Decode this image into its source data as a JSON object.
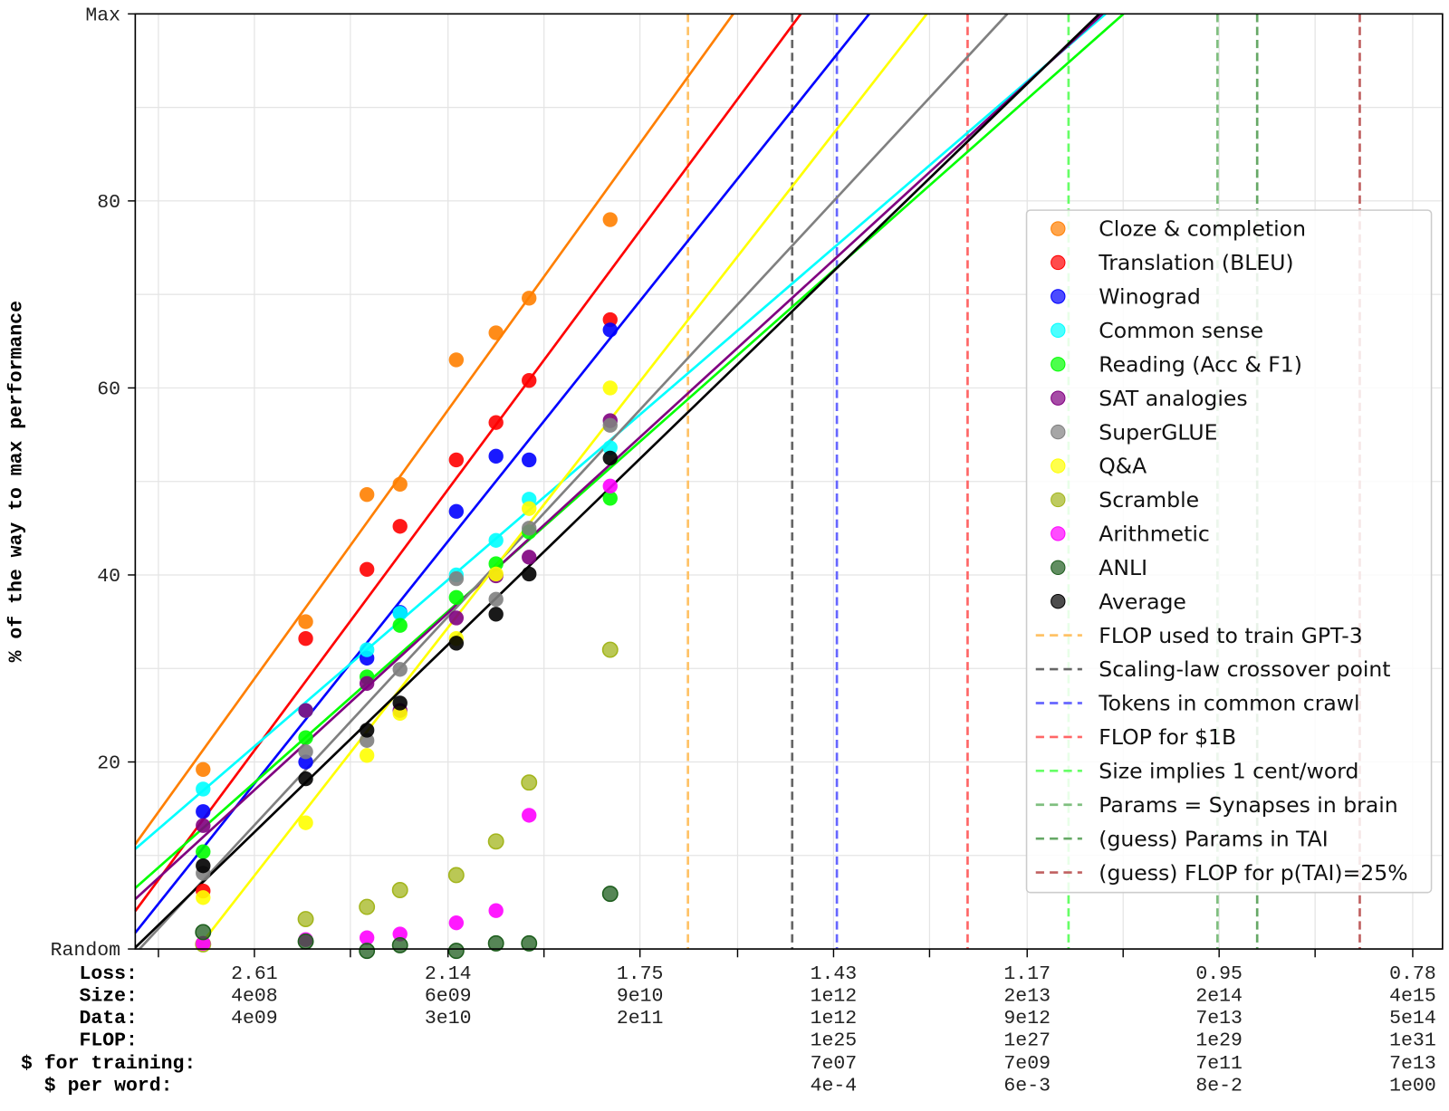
{
  "chart_data": {
    "type": "scatter",
    "ylabel": "% of the way to max performance",
    "ylim": [
      0,
      100
    ],
    "y_ticks": [
      {
        "value": 0,
        "label": "Random"
      },
      {
        "value": 20,
        "label": "20"
      },
      {
        "value": 40,
        "label": "40"
      },
      {
        "value": 60,
        "label": "60"
      },
      {
        "value": 80,
        "label": "80"
      },
      {
        "value": 100,
        "label": "Max"
      }
    ],
    "xlim": [
      7.88,
      15.78
    ],
    "x_minor_ticks": [
      8.02,
      9.18,
      10.35,
      11.52,
      12.68,
      13.85,
      15.01
    ],
    "x_row_labels": [
      "Loss:",
      "Size:",
      "Data:",
      "FLOP:",
      "$ for training:",
      "$ per word:"
    ],
    "x_ticks": [
      {
        "x": 8.6,
        "rows": [
          "2.61",
          "4e08",
          "4e09",
          "",
          "",
          ""
        ]
      },
      {
        "x": 9.77,
        "rows": [
          "2.14",
          "6e09",
          "3e10",
          "",
          "",
          ""
        ]
      },
      {
        "x": 10.93,
        "rows": [
          "1.75",
          "9e10",
          "2e11",
          "",
          "",
          ""
        ]
      },
      {
        "x": 12.1,
        "rows": [
          "1.43",
          "1e12",
          "1e12",
          "1e25",
          "7e07",
          "4e-4"
        ]
      },
      {
        "x": 13.27,
        "rows": [
          "1.17",
          "2e13",
          "9e12",
          "1e27",
          "7e09",
          "6e-3"
        ]
      },
      {
        "x": 14.43,
        "rows": [
          "0.95",
          "2e14",
          "7e13",
          "1e29",
          "7e11",
          "8e-2"
        ]
      },
      {
        "x": 15.6,
        "rows": [
          "0.78",
          "4e15",
          "5e14",
          "1e31",
          "7e13",
          "1e00"
        ]
      }
    ],
    "grid": true,
    "legend_position": "right",
    "x": [
      8.29,
      8.91,
      9.28,
      9.48,
      9.82,
      10.06,
      10.26,
      10.75
    ],
    "series": [
      {
        "name": "Cloze & completion",
        "color": "#ff7f00",
        "fit_line": true,
        "values": [
          19.2,
          35.0,
          48.6,
          49.7,
          63.0,
          65.9,
          69.6,
          78.0
        ]
      },
      {
        "name": "Translation (BLEU)",
        "color": "#ff0000",
        "fit_line": true,
        "values": [
          6.2,
          33.2,
          40.6,
          45.2,
          52.3,
          56.3,
          60.8,
          67.3
        ]
      },
      {
        "name": "Winograd",
        "color": "#0000ff",
        "fit_line": true,
        "values": [
          14.7,
          20.0,
          31.1,
          36.0,
          46.8,
          52.7,
          52.3,
          66.2
        ]
      },
      {
        "name": "Common sense",
        "color": "#00ffff",
        "fit_line": true,
        "values": [
          17.1,
          25.5,
          32.0,
          35.9,
          40.0,
          43.7,
          48.1,
          53.6
        ]
      },
      {
        "name": "Reading (Acc & F1)",
        "color": "#00ff00",
        "fit_line": true,
        "values": [
          10.4,
          22.6,
          29.1,
          34.6,
          37.6,
          41.2,
          44.6,
          48.2
        ]
      },
      {
        "name": "SAT analogies",
        "color": "#800080",
        "fit_line": true,
        "values": [
          13.2,
          25.5,
          28.4,
          25.5,
          35.4,
          39.9,
          41.9,
          56.5
        ]
      },
      {
        "name": "SuperGLUE",
        "color": "#808080",
        "fit_line": true,
        "values": [
          8.1,
          21.1,
          22.3,
          29.9,
          39.6,
          37.4,
          45.0,
          56.0
        ]
      },
      {
        "name": "Q&A",
        "color": "#ffff00",
        "fit_line": true,
        "values": [
          5.5,
          13.5,
          20.7,
          25.2,
          33.2,
          40.1,
          47.1,
          60.0
        ]
      },
      {
        "name": "Scramble",
        "color": "#a3b51c",
        "fit_line": false,
        "values": [
          0.5,
          3.2,
          4.5,
          6.3,
          7.9,
          11.5,
          17.8,
          32.0
        ]
      },
      {
        "name": "Arithmetic",
        "color": "#ff00ff",
        "fit_line": false,
        "values": [
          0.6,
          1.0,
          1.2,
          1.6,
          2.8,
          4.1,
          14.3,
          49.5
        ]
      },
      {
        "name": "ANLI",
        "color": "#1e5e1e",
        "fit_line": false,
        "values": [
          1.8,
          0.8,
          -0.2,
          0.4,
          -0.2,
          0.6,
          0.6,
          5.9
        ]
      },
      {
        "name": "Average",
        "color": "#000000",
        "fit_line": true,
        "values": [
          8.9,
          18.2,
          23.4,
          26.3,
          32.7,
          35.8,
          40.1,
          52.5
        ]
      }
    ],
    "vertical_lines": [
      {
        "name": "FLOP used to train GPT-3",
        "x": 11.22,
        "color": "#ffc266"
      },
      {
        "name": "Scaling-law crossover point",
        "x": 11.85,
        "color": "#666666"
      },
      {
        "name": "Tokens in common crawl",
        "x": 12.12,
        "color": "#6666ff"
      },
      {
        "name": "FLOP for $1B",
        "x": 12.91,
        "color": "#ff6666"
      },
      {
        "name": "Size implies 1 cent/word",
        "x": 13.52,
        "color": "#66ff66"
      },
      {
        "name": "Params = Synapses in brain",
        "x": 14.42,
        "color": "#7fbf7f"
      },
      {
        "name": "(guess) Params in TAI",
        "x": 14.66,
        "color": "#66a866"
      },
      {
        "name": "(guess) FLOP for p(TAI)=25%",
        "x": 15.28,
        "color": "#c06060"
      }
    ]
  }
}
